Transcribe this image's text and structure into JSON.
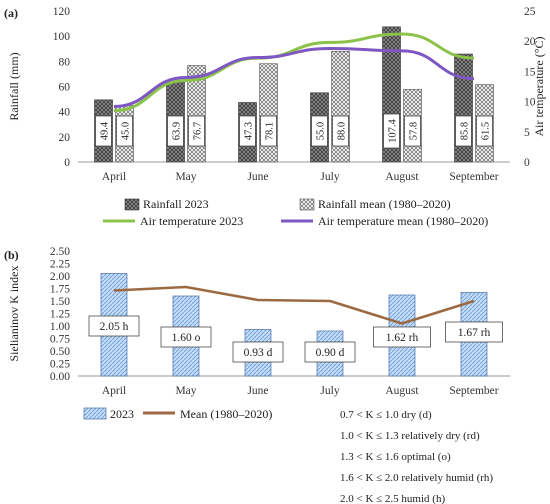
{
  "panel_a": {
    "label": "(a)",
    "legend": {
      "rainfall_2023": "Rainfall 2023",
      "rainfall_mean": "Rainfall mean (1980–2020)",
      "temp_2023": "Air temperature 2023",
      "temp_mean": "Air temperature mean (1980–2020)"
    }
  },
  "panel_b": {
    "label": "(b)",
    "legend": {
      "series_2023": "2023",
      "series_mean": "Mean (1980–2020)"
    },
    "classes": [
      "0.7 < K ≤ 1.0 dry (d)",
      "1.0 < K ≤ 1.3 relatively dry (rd)",
      "1.3 < K ≤ 1.6 optimal (o)",
      "1.6 < K ≤ 2.0 relatively humid (rh)",
      "2.0 < K ≤ 2.5 humid (h)"
    ]
  },
  "chart_data": [
    {
      "type": "bar",
      "categories": [
        "April",
        "May",
        "June",
        "July",
        "August",
        "September"
      ],
      "ylabel": "Rainfall (mm)",
      "ylim": [
        0,
        120
      ],
      "yticks": [
        0,
        20,
        40,
        60,
        80,
        100,
        120
      ],
      "y2label": "Air temperature (°C)",
      "y2lim": [
        0,
        25
      ],
      "y2ticks": [
        0,
        5,
        10,
        15,
        20,
        25
      ],
      "series": [
        {
          "name": "Rainfall 2023",
          "values": [
            49.4,
            63.9,
            47.3,
            55.0,
            107.4,
            85.8
          ],
          "color": "#555555"
        },
        {
          "name": "Rainfall mean (1980–2020)",
          "values": [
            45.0,
            76.7,
            78.1,
            88.0,
            57.8,
            61.5
          ],
          "color": "#bbbbbb"
        },
        {
          "name": "Air temperature 2023",
          "type": "line",
          "axis": "right",
          "values": [
            8.5,
            13.5,
            17.2,
            19.8,
            21.2,
            17.2
          ],
          "color": "#8bc34a"
        },
        {
          "name": "Air temperature mean (1980–2020)",
          "type": "line",
          "axis": "right",
          "values": [
            9.2,
            14.0,
            17.3,
            18.8,
            18.4,
            13.8
          ],
          "color": "#7e57c2"
        }
      ],
      "data_labels": {
        "rainfall_2023": [
          "49.4",
          "63.9",
          "47.3",
          "55.0",
          "107.4",
          "85.8"
        ],
        "rainfall_mean": [
          "45.0",
          "76.7",
          "78.1",
          "88.0",
          "57.8",
          "61.5"
        ]
      },
      "grid": false
    },
    {
      "type": "bar",
      "categories": [
        "April",
        "May",
        "June",
        "July",
        "August",
        "September"
      ],
      "ylabel": "Sielianinov K index",
      "ylim": [
        0,
        2.5
      ],
      "yticks": [
        "0.00",
        "0.25",
        "0.50",
        "0.75",
        "1.00",
        "1.25",
        "1.50",
        "1.75",
        "2.00",
        "2.25",
        "2.50"
      ],
      "series": [
        {
          "name": "2023",
          "values": [
            2.05,
            1.6,
            0.93,
            0.9,
            1.62,
            1.67
          ],
          "color": "#9fc5f0"
        },
        {
          "name": "Mean (1980–2020)",
          "type": "line",
          "values": [
            1.71,
            1.78,
            1.52,
            1.5,
            1.05,
            1.5
          ],
          "color": "#9c6a42"
        }
      ],
      "data_labels": [
        "2.05 h",
        "1.60 o",
        "0.93 d",
        "0.90 d",
        "1.62 rh",
        "1.67 rh"
      ],
      "grid": false
    }
  ]
}
